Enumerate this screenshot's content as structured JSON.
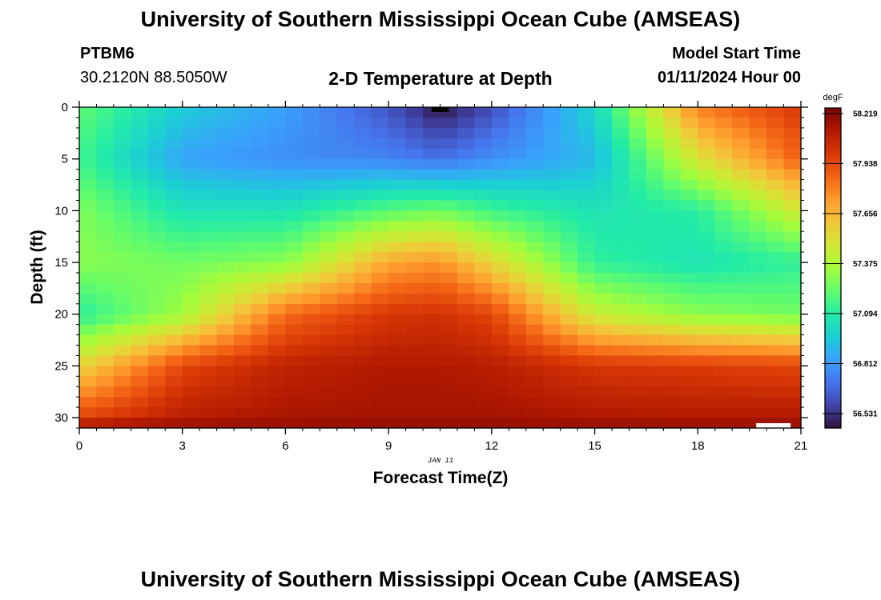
{
  "header": {
    "title": "University of Southern Mississippi Ocean Cube (AMSEAS)",
    "station_id": "PTBM6",
    "station_coords": "30.2120N  88.5050W",
    "plot_title": "2-D Temperature at Depth",
    "model_start_label": "Model Start Time",
    "model_start_value": "01/11/2024 Hour 00"
  },
  "footer": {
    "title": "University of Southern Mississippi Ocean Cube (AMSEAS)"
  },
  "chart_data": {
    "type": "heatmap",
    "title": "2-D Temperature at Depth",
    "xlabel": "Forecast Time(Z)",
    "ylabel": "Depth (ft)",
    "x_date_label": "JAN 11",
    "xlim": [
      0,
      21
    ],
    "ylim": [
      31,
      0
    ],
    "xticks": [
      0,
      3,
      6,
      9,
      12,
      15,
      18,
      21
    ],
    "yticks": [
      0,
      5,
      10,
      15,
      20,
      25,
      30
    ],
    "x_minor_step": 0.5,
    "y_minor_step": 1,
    "colorbar": {
      "unit": "degF",
      "ticks": [
        "58.219",
        "57.938",
        "57.656",
        "57.375",
        "57.094",
        "56.812",
        "56.531"
      ],
      "min": 56.45,
      "max": 58.25,
      "colormap": [
        "#30123b",
        "#4145ab",
        "#4675ed",
        "#39a2fc",
        "#1bcfd4",
        "#24eca6",
        "#61fc6c",
        "#a4fc3b",
        "#d1e834",
        "#f3c63a",
        "#fe9b2d",
        "#f36315",
        "#d93806",
        "#b11901",
        "#7a0403"
      ]
    },
    "columns_per_hour": 2,
    "rows_per_foot": 1,
    "temperature_keypoints_degF": {
      "times_h": [
        0,
        3,
        6,
        9,
        10.5,
        12,
        15,
        18,
        21
      ],
      "depths_ft": [
        0,
        5,
        10,
        15,
        20,
        25,
        30,
        31
      ],
      "values": [
        [
          57.22,
          57.15,
          57.28,
          57.3,
          57.1,
          57.55,
          57.95,
          58.19
        ],
        [
          56.96,
          56.84,
          57.05,
          57.25,
          57.35,
          57.95,
          58.1,
          58.2
        ],
        [
          56.83,
          56.78,
          57.05,
          57.3,
          57.85,
          58.08,
          58.14,
          58.2
        ],
        [
          56.62,
          56.75,
          57.2,
          57.7,
          58.0,
          58.12,
          58.15,
          58.2
        ],
        [
          56.46,
          56.7,
          57.25,
          57.75,
          58.02,
          58.12,
          58.15,
          58.2
        ],
        [
          56.6,
          56.78,
          57.15,
          57.55,
          57.95,
          58.1,
          58.15,
          58.2
        ],
        [
          57.0,
          56.9,
          57.05,
          57.12,
          57.45,
          58.0,
          58.13,
          58.2
        ],
        [
          57.8,
          57.5,
          57.1,
          57.05,
          57.3,
          57.98,
          58.12,
          58.2
        ],
        [
          58.0,
          57.88,
          57.48,
          57.12,
          57.25,
          57.95,
          58.12,
          58.2
        ]
      ]
    },
    "notes": {
      "top_marker": "black box at surface near hour 10.5",
      "bottom_marker": "white box at bottom-right near hour 19.7-20.7"
    }
  }
}
